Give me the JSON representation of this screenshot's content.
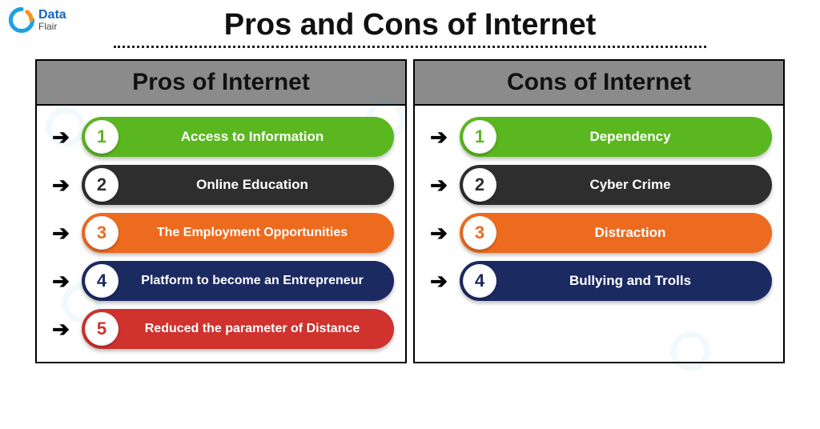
{
  "logo": {
    "top_text": "Data",
    "bottom_text": "Flair",
    "top_color": "#1565c0",
    "bottom_color": "#5a5a5a",
    "mark_primary": "#1fa0e4",
    "mark_secondary": "#f7931e"
  },
  "main_title": "Pros and Cons of Internet",
  "title_fontsize": 38,
  "columns": {
    "left": {
      "header": "Pros of Internet",
      "items": [
        {
          "n": "1",
          "label": "Access to Information",
          "bg": "#5bb71f",
          "num_color": "#5bb71f",
          "twoline": false
        },
        {
          "n": "2",
          "label": "Online Education",
          "bg": "#2e2e2e",
          "num_color": "#2e2e2e",
          "twoline": false
        },
        {
          "n": "3",
          "label": "The Employment Opportunities",
          "bg": "#ed6b1f",
          "num_color": "#ed6b1f",
          "twoline": true
        },
        {
          "n": "4",
          "label": "Platform to become an Entrepreneur",
          "bg": "#1c2a62",
          "num_color": "#1c2a62",
          "twoline": true
        },
        {
          "n": "5",
          "label": "Reduced the parameter of Distance",
          "bg": "#d0322d",
          "num_color": "#d0322d",
          "twoline": true
        }
      ]
    },
    "right": {
      "header": "Cons of Internet",
      "items": [
        {
          "n": "1",
          "label": "Dependency",
          "bg": "#5bb71f",
          "num_color": "#5bb71f",
          "twoline": false
        },
        {
          "n": "2",
          "label": "Cyber Crime",
          "bg": "#2e2e2e",
          "num_color": "#2e2e2e",
          "twoline": false
        },
        {
          "n": "3",
          "label": "Distraction",
          "bg": "#ed6b1f",
          "num_color": "#ed6b1f",
          "twoline": false
        },
        {
          "n": "4",
          "label": "Bullying and Trolls",
          "bg": "#1c2a62",
          "num_color": "#1c2a62",
          "twoline": false
        }
      ]
    }
  },
  "header_bg": "#8b8b8b",
  "pill_text_color": "#ffffff"
}
